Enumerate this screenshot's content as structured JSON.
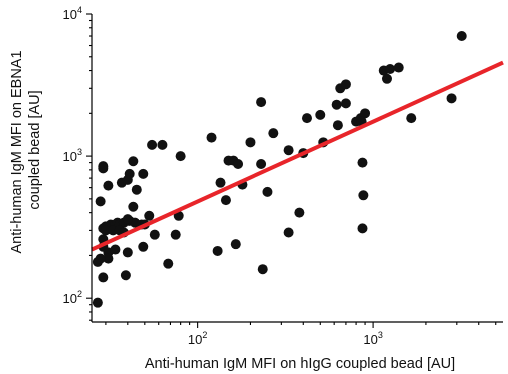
{
  "chart_data": {
    "type": "scatter",
    "xlabel": "Anti-human IgM MFI on hIgG coupled bead [AU]",
    "ylabel_lines": [
      "Anti-human IgM MFI on EBNA1",
      "coupled bead [AU]"
    ],
    "xscale": "log",
    "yscale": "log",
    "xlim": [
      25,
      5500
    ],
    "ylim": [
      68,
      10000
    ],
    "x_ticks": [
      {
        "value": 100,
        "base": "10",
        "exp": "2"
      },
      {
        "value": 1000,
        "base": "10",
        "exp": "3"
      }
    ],
    "y_ticks": [
      {
        "value": 100,
        "base": "10",
        "exp": "2"
      },
      {
        "value": 1000,
        "base": "10",
        "exp": "3"
      },
      {
        "value": 10000,
        "base": "10",
        "exp": "4"
      }
    ],
    "points": [
      [
        3200,
        7000
      ],
      [
        1150,
        4000
      ],
      [
        1250,
        4100
      ],
      [
        1400,
        4200
      ],
      [
        1200,
        3500
      ],
      [
        650,
        3000
      ],
      [
        700,
        3200
      ],
      [
        620,
        2300
      ],
      [
        700,
        2350
      ],
      [
        2800,
        2550
      ],
      [
        1650,
        1850
      ],
      [
        850,
        1850
      ],
      [
        420,
        1850
      ],
      [
        500,
        1950
      ],
      [
        900,
        2000
      ],
      [
        800,
        1750
      ],
      [
        230,
        2400
      ],
      [
        200,
        1250
      ],
      [
        270,
        1450
      ],
      [
        120,
        1350
      ],
      [
        63,
        1200
      ],
      [
        55,
        1200
      ],
      [
        80,
        1000
      ],
      [
        43,
        920
      ],
      [
        49,
        750
      ],
      [
        41,
        750
      ],
      [
        29,
        850
      ],
      [
        29,
        820
      ],
      [
        37,
        650
      ],
      [
        40,
        680
      ],
      [
        31,
        620
      ],
      [
        45,
        580
      ],
      [
        150,
        930
      ],
      [
        160,
        930
      ],
      [
        170,
        880
      ],
      [
        230,
        880
      ],
      [
        135,
        650
      ],
      [
        180,
        630
      ],
      [
        250,
        560
      ],
      [
        520,
        1250
      ],
      [
        400,
        1050
      ],
      [
        330,
        1100
      ],
      [
        630,
        1650
      ],
      [
        860,
        1750
      ],
      [
        870,
        900
      ],
      [
        880,
        530
      ],
      [
        870,
        310
      ],
      [
        380,
        400
      ],
      [
        330,
        290
      ],
      [
        145,
        490
      ],
      [
        235,
        160
      ],
      [
        165,
        240
      ],
      [
        130,
        215
      ],
      [
        28,
        480
      ],
      [
        29,
        310
      ],
      [
        30,
        320
      ],
      [
        31,
        320
      ],
      [
        32,
        330
      ],
      [
        34,
        330
      ],
      [
        35,
        340
      ],
      [
        36,
        330
      ],
      [
        38,
        340
      ],
      [
        41,
        350
      ],
      [
        44,
        340
      ],
      [
        48,
        330
      ],
      [
        50,
        330
      ],
      [
        30,
        300
      ],
      [
        33,
        300
      ],
      [
        36,
        300
      ],
      [
        38,
        290
      ],
      [
        40,
        360
      ],
      [
        43,
        440
      ],
      [
        53,
        380
      ],
      [
        57,
        280
      ],
      [
        78,
        380
      ],
      [
        75,
        280
      ],
      [
        29,
        260
      ],
      [
        29,
        230
      ],
      [
        31,
        210
      ],
      [
        34,
        220
      ],
      [
        31,
        190
      ],
      [
        27,
        180
      ],
      [
        28,
        190
      ],
      [
        40,
        210
      ],
      [
        49,
        230
      ],
      [
        68,
        175
      ],
      [
        29,
        140
      ],
      [
        39,
        145
      ],
      [
        27,
        93
      ]
    ],
    "trendline": {
      "x": [
        25,
        5500
      ],
      "y": [
        220,
        4550
      ],
      "color": "#e8252a"
    },
    "point_color": "#111111",
    "grid": false
  }
}
